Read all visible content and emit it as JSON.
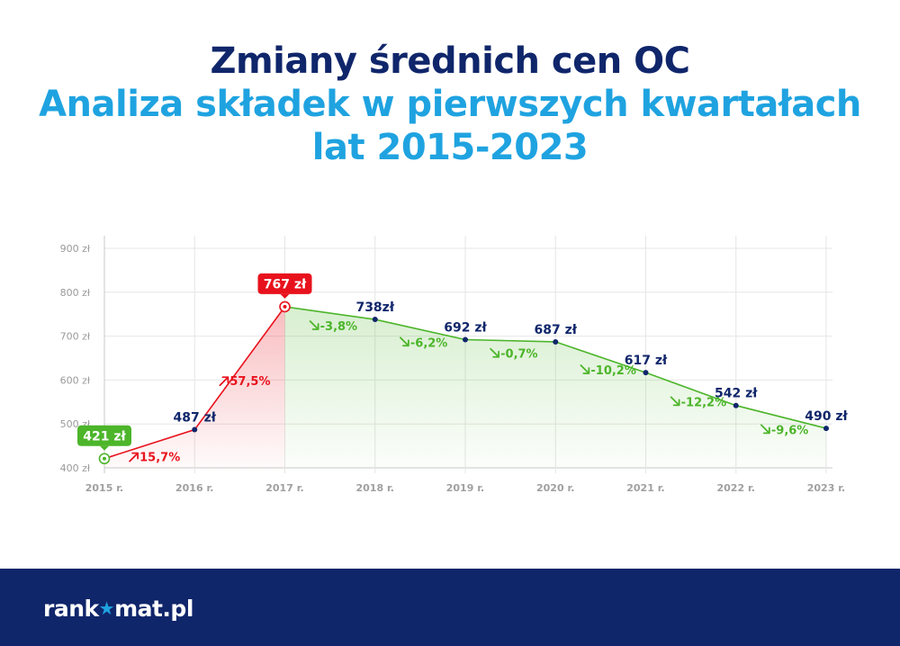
{
  "title": {
    "line1": "Zmiany średnich cen OC",
    "line2": "Analiza składek w pierwszych kwartałach",
    "line3": "lat 2015-2023"
  },
  "chart_data": {
    "type": "line",
    "categories": [
      "2015 r.",
      "2016 r.",
      "2017 r.",
      "2018 r.",
      "2019 r.",
      "2020 r.",
      "2021 r.",
      "2022 r.",
      "2023 r."
    ],
    "values": [
      421,
      487,
      767,
      738,
      692,
      687,
      617,
      542,
      490
    ],
    "value_labels": [
      "421 zł",
      "487 zł",
      "767 zł",
      "738zł",
      "692 zł",
      "687 zł",
      "617 zł",
      "542 zł",
      "490 zł"
    ],
    "changes": [
      "15,7%",
      "57,5%",
      "-3,8%",
      "-6,2%",
      "-0,7%",
      "-10,2%",
      "-12,2%",
      "-9,6%"
    ],
    "ylim": [
      400,
      900
    ],
    "yticks": [
      400,
      500,
      600,
      700,
      800,
      900
    ],
    "ytick_labels": [
      "400 zł",
      "500 zł",
      "600 zł",
      "700 zł",
      "800 zł",
      "900 zł"
    ],
    "grid": true,
    "highlight": {
      "min_index": 0,
      "max_index": 2
    },
    "colors": {
      "rise": "#e8121d",
      "fall": "#4cb52a",
      "point": "#10266b",
      "label": "#10266b",
      "min_badge": "#4cb52a",
      "max_badge": "#e8121d"
    }
  },
  "footer": {
    "logo_start": "rank",
    "logo_end": "mat.pl",
    "logo_icon": "star-icon",
    "background": "#10266b"
  }
}
